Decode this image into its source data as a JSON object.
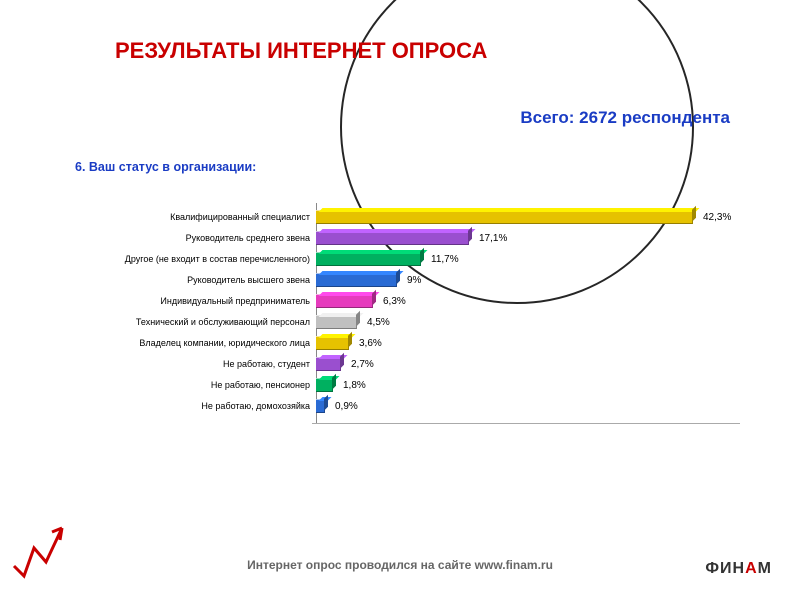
{
  "title": "РЕЗУЛЬТАТЫ ИНТЕРНЕТ ОПРОСА",
  "subtitle": "Всего: 2672 респондента",
  "question": "6. Ваш статус в организации:",
  "footer": "Интернет опрос проводился на сайте www.finam.ru",
  "logo": {
    "part1": "ФИН",
    "accent": "А",
    "part2": "М"
  },
  "chart": {
    "type": "horizontal-bar-3d",
    "max": 45,
    "label_fontsize": 9,
    "value_fontsize": 10,
    "background_color": "#ffffff",
    "grid_color": "#888888",
    "rows": [
      {
        "label": "Квалифицированный специалист",
        "value": 42.3,
        "value_label": "42,3%",
        "color": "#e6c200"
      },
      {
        "label": "Руководитель среднего звена",
        "value": 17.1,
        "value_label": "17,1%",
        "color": "#9a4fcf"
      },
      {
        "label": "Другое (не входит в состав перечисленного)",
        "value": 11.7,
        "value_label": "11,7%",
        "color": "#00b060"
      },
      {
        "label": "Руководитель высшего звена",
        "value": 9.0,
        "value_label": "9%",
        "color": "#2a6bd4"
      },
      {
        "label": "Индивидуальный предприниматель",
        "value": 6.3,
        "value_label": "6,3%",
        "color": "#e63bbd"
      },
      {
        "label": "Технический и обслуживающий персонал",
        "value": 4.5,
        "value_label": "4,5%",
        "color": "#c0c0c0"
      },
      {
        "label": "Владелец компании, юридического лица",
        "value": 3.6,
        "value_label": "3,6%",
        "color": "#e6c200"
      },
      {
        "label": "Не работаю, студент",
        "value": 2.7,
        "value_label": "2,7%",
        "color": "#9a4fcf"
      },
      {
        "label": "Не работаю, пенсионер",
        "value": 1.8,
        "value_label": "1,8%",
        "color": "#00b060"
      },
      {
        "label": "Не работаю, домохозяйка",
        "value": 0.9,
        "value_label": "0,9%",
        "color": "#2a6bd4"
      }
    ]
  }
}
